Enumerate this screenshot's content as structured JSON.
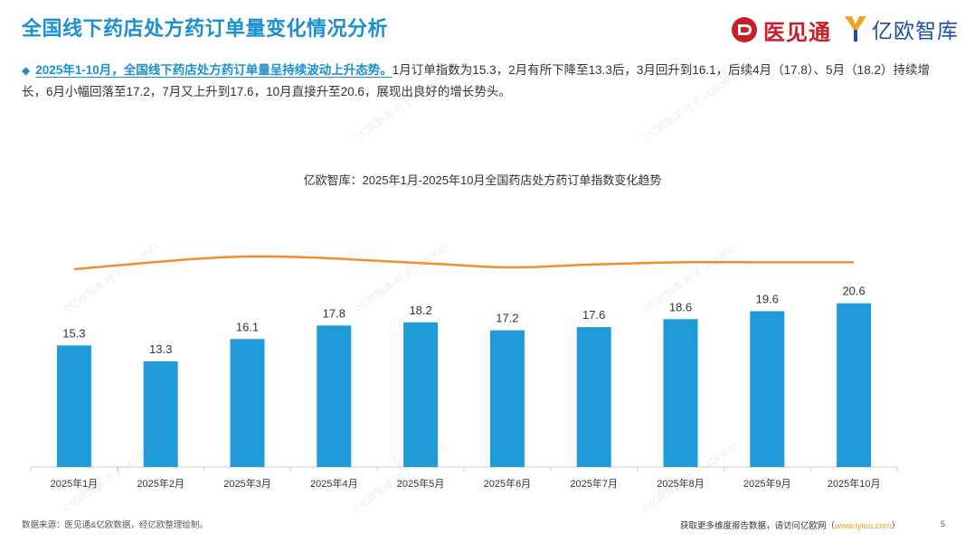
{
  "header": {
    "title": "全国线下药店处方药订单量变化情况分析",
    "logo_left_text": "医见通",
    "logo_right_text": "亿欧智库"
  },
  "summary": {
    "highlight": "2025年1-10月，全国线下药店处方药订单量呈持续波动上升态势。",
    "body": "1月订单指数为15.3，2月有所下降至13.3后，3月回升到16.1，后续4月（17.8）、5月（18.2）持续增长，6月小幅回落至17.2，7月又上升到17.6，10月直接升至20.6，展现出良好的增长势头。"
  },
  "chart_data": {
    "type": "bar",
    "title": "亿欧智库：2025年1月-2025年10月全国药店处方药订单指数变化趋势",
    "categories": [
      "2025年1月",
      "2025年2月",
      "2025年3月",
      "2025年4月",
      "2025年5月",
      "2025年6月",
      "2025年7月",
      "2025年8月",
      "2025年9月",
      "2025年10月"
    ],
    "values": [
      15.3,
      13.3,
      16.1,
      17.8,
      18.2,
      17.2,
      17.6,
      18.6,
      19.6,
      20.6
    ],
    "data_labels": [
      "15.3",
      "13.3",
      "16.1",
      "17.8",
      "18.2",
      "17.2",
      "17.6",
      "18.6",
      "19.6",
      "20.6"
    ],
    "trend_line": {
      "style": "smooth orange curve above bars, decorative trend",
      "relative_values": [
        0.55,
        null,
        0.9,
        null,
        0.72,
        0.6,
        0.68,
        0.74,
        0.74,
        0.74
      ],
      "x_positions": [
        1,
        2,
        3,
        4,
        5,
        6,
        7,
        8,
        9,
        10
      ]
    },
    "ylim": [
      0,
      25
    ],
    "xlabel": "",
    "ylabel": "",
    "grid": false,
    "legend": "none",
    "colors": {
      "bar": "#1f9bd7",
      "trend": "#f0902a",
      "axis": "#cccccc"
    }
  },
  "watermark": {
    "text": "©亿欧智库-叶子 (416955)"
  },
  "footer": {
    "source": "数据来源：医见通&亿欧数据，经亿欧整理绘制。",
    "cta_prefix": "获取更多维度报告数据，请访问亿欧网（",
    "cta_link": "www.iyiou.com",
    "cta_suffix": "）",
    "page_number": "5"
  }
}
